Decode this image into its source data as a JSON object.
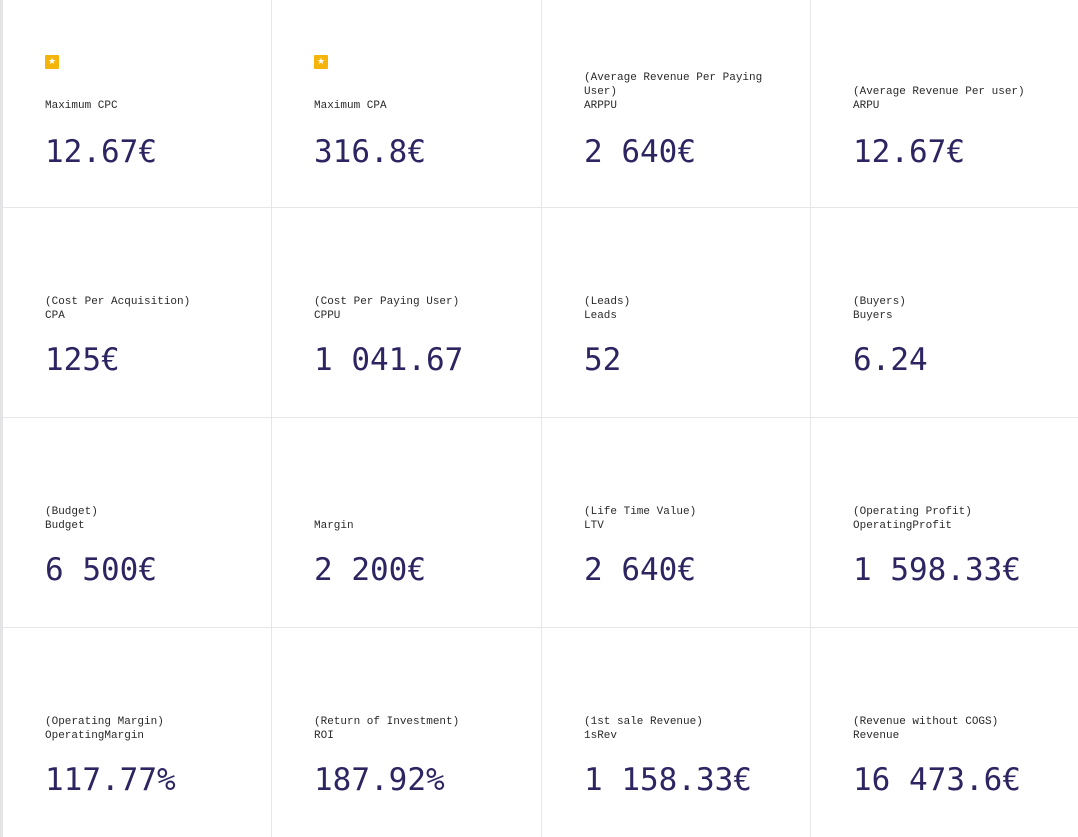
{
  "colors": {
    "value_text": "#2c2562",
    "label_text": "#2a2a2a",
    "star_badge": "#f5b40a",
    "divider": "#e6e6e9"
  },
  "cards": [
    {
      "starred": true,
      "desc": "",
      "name": "Maximum CPC",
      "value": "12.67€"
    },
    {
      "starred": true,
      "desc": "",
      "name": "Maximum CPA",
      "value": "316.8€"
    },
    {
      "starred": false,
      "desc": "(Average Revenue Per Paying User)",
      "name": "ARPPU",
      "value": "2 640€"
    },
    {
      "starred": false,
      "desc": "(Average Revenue Per user)",
      "name": "ARPU",
      "value": "12.67€"
    },
    {
      "starred": false,
      "desc": "(Cost Per Acquisition)",
      "name": "CPA",
      "value": "125€"
    },
    {
      "starred": false,
      "desc": "(Cost Per Paying User)",
      "name": "CPPU",
      "value": "1 041.67"
    },
    {
      "starred": false,
      "desc": "(Leads)",
      "name": "Leads",
      "value": "52"
    },
    {
      "starred": false,
      "desc": "(Buyers)",
      "name": "Buyers",
      "value": "6.24"
    },
    {
      "starred": false,
      "desc": "(Budget)",
      "name": "Budget",
      "value": "6 500€"
    },
    {
      "starred": false,
      "desc": "",
      "name": "Margin",
      "value": "2 200€"
    },
    {
      "starred": false,
      "desc": "(Life Time Value)",
      "name": "LTV",
      "value": "2 640€"
    },
    {
      "starred": false,
      "desc": "(Operating Profit)",
      "name": "OperatingProfit",
      "value": "1 598.33€"
    },
    {
      "starred": false,
      "desc": "(Operating Margin)",
      "name": "OperatingMargin",
      "value": "117.77%"
    },
    {
      "starred": false,
      "desc": "(Return of Investment)",
      "name": "ROI",
      "value": "187.92%"
    },
    {
      "starred": false,
      "desc": "(1st sale Revenue)",
      "name": "1sRev",
      "value": "1 158.33€"
    },
    {
      "starred": false,
      "desc": "(Revenue without COGS)",
      "name": "Revenue",
      "value": "16 473.6€"
    }
  ]
}
